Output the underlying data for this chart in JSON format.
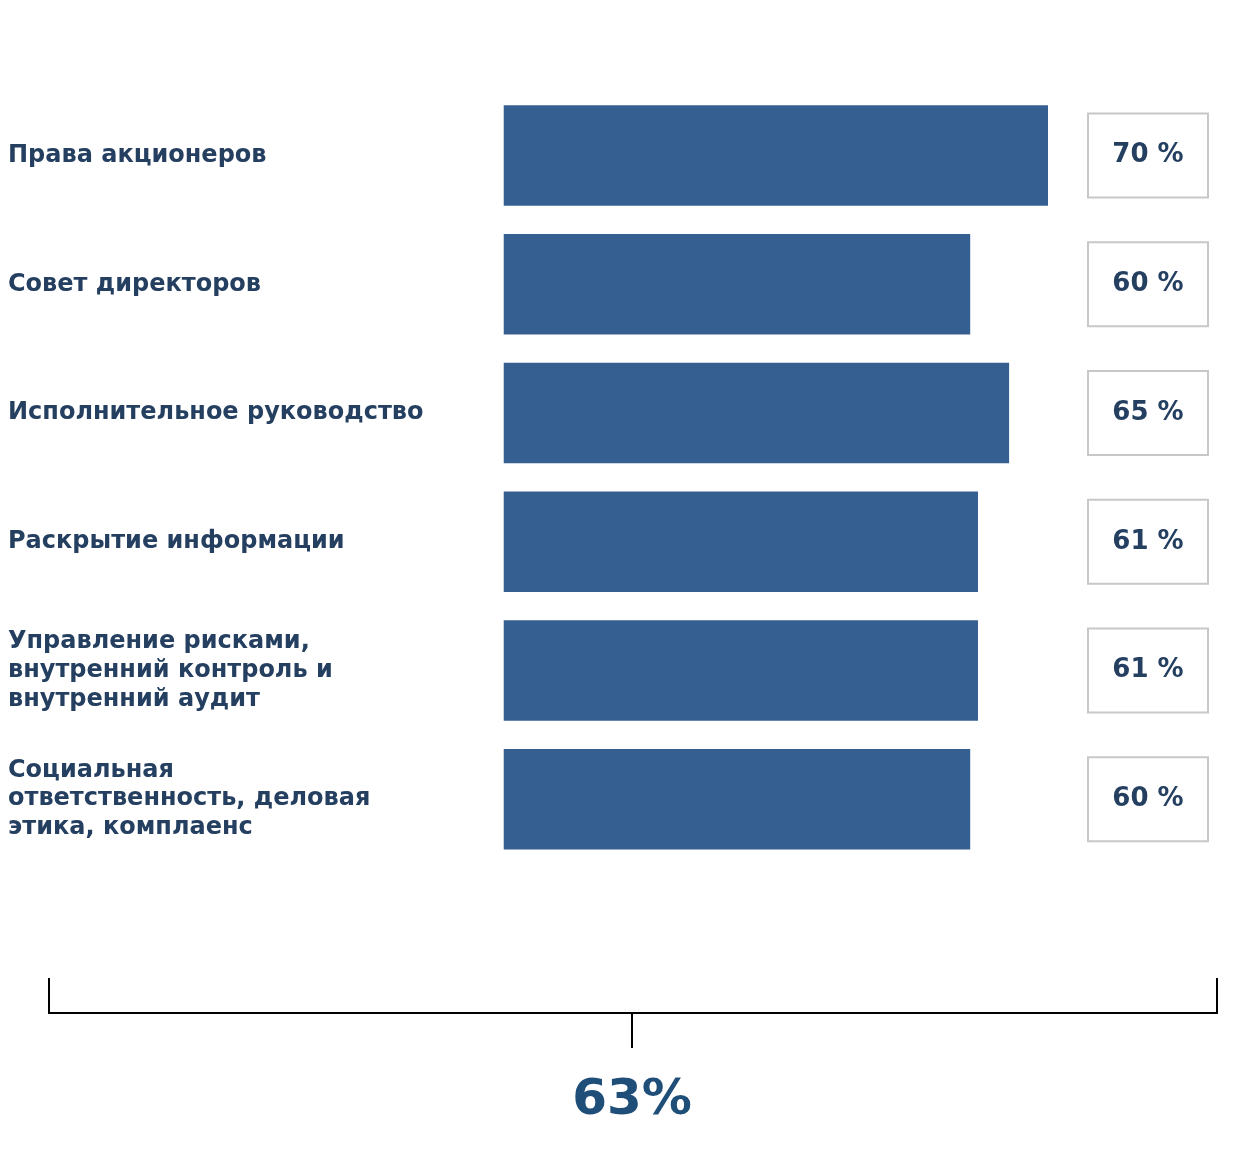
{
  "chart_data": {
    "type": "bar",
    "orientation": "horizontal",
    "categories": [
      "Права акционеров",
      "Совет директоров",
      "Исполнительное руководство",
      "Раскрытие информации",
      "Управление рисками, внутренний контроль и внутренний аудит",
      "Социальная ответственность, деловая этика, комплаенс"
    ],
    "values": [
      70,
      60,
      65,
      61,
      61,
      60
    ],
    "value_labels": [
      "70 %",
      "60 %",
      "65 %",
      "61 %",
      "61 %",
      "60 %"
    ],
    "color": "#365f91",
    "tick_labels": "y",
    "grid": false,
    "legend": false,
    "annotations": [
      "63%"
    ]
  }
}
